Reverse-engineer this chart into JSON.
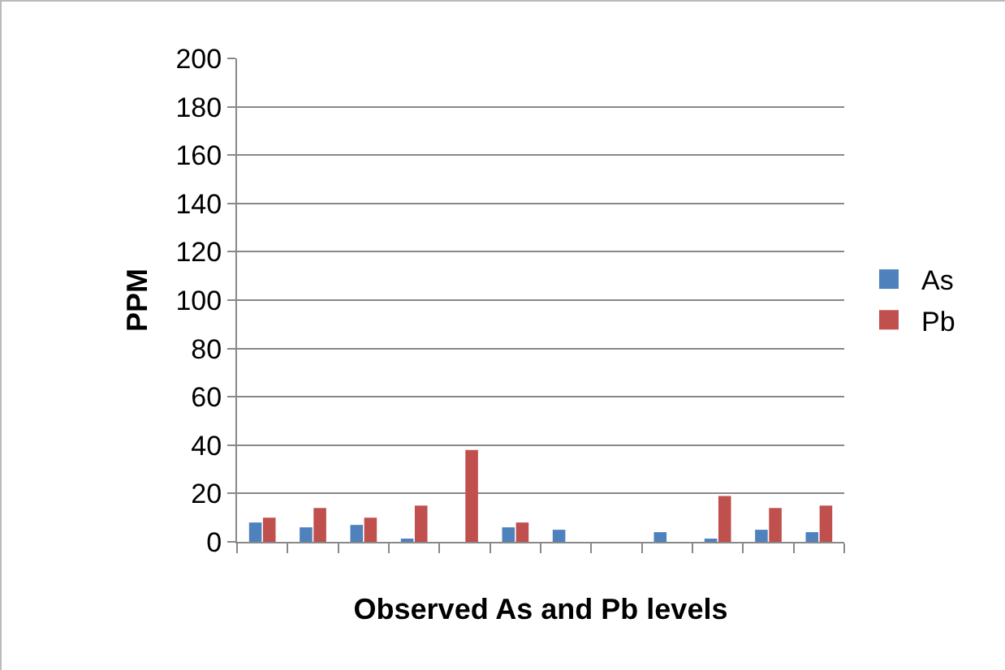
{
  "chart_data": {
    "type": "bar",
    "xlabel": "Observed As and Pb levels",
    "ylabel": "PPM",
    "categories": [
      null,
      null,
      null,
      null,
      null,
      null,
      null,
      null,
      null,
      null,
      null,
      null
    ],
    "series": [
      {
        "name": "As",
        "color": "#4f81bd",
        "values": [
          8,
          6,
          7,
          1,
          0,
          6,
          5,
          0,
          4,
          1,
          5,
          4
        ]
      },
      {
        "name": "Pb",
        "color": "#c0504d",
        "values": [
          10,
          14,
          10,
          15,
          38,
          8,
          0,
          0,
          0,
          19,
          14,
          15
        ]
      }
    ],
    "ylim": [
      0,
      200
    ],
    "yticks": [
      0,
      20,
      40,
      60,
      80,
      100,
      120,
      140,
      160,
      180,
      200
    ],
    "grid": "y",
    "legend": "right"
  }
}
